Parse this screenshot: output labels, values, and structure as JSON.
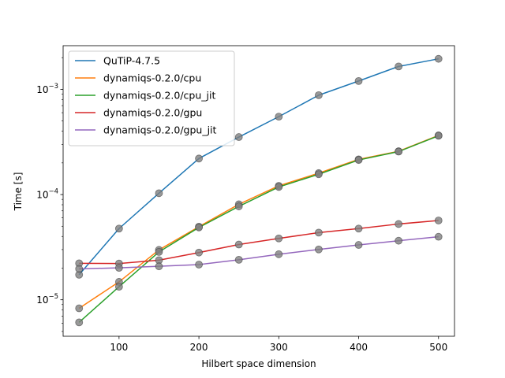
{
  "chart_data": {
    "type": "line",
    "title": "",
    "xlabel": "Hilbert space dimension",
    "ylabel": "Time [s]",
    "yscale": "log",
    "xlim": [
      30,
      520
    ],
    "ylim": [
      4.5e-06,
      0.0026
    ],
    "grid": false,
    "legend_position": "top-left",
    "x": [
      50,
      100,
      150,
      200,
      250,
      300,
      350,
      400,
      450,
      500
    ],
    "x_ticks": [
      100,
      200,
      300,
      400,
      500
    ],
    "y_ticks": [
      {
        "value": 1e-05,
        "base": "10",
        "exp": "−5"
      },
      {
        "value": 0.0001,
        "base": "10",
        "exp": "−4"
      },
      {
        "value": 0.001,
        "base": "10",
        "exp": "−3"
      }
    ],
    "marker_color": "#808080",
    "series": [
      {
        "name": "QuTiP-4.7.5",
        "color": "#1f77b4",
        "values": [
          1.73e-05,
          4.75e-05,
          0.000103,
          0.00022,
          0.000352,
          0.00055,
          0.00088,
          0.0012,
          0.00165,
          0.00195
        ]
      },
      {
        "name": "dynamiqs-0.2.0/cpu",
        "color": "#ff7f0e",
        "values": [
          8.3e-06,
          1.48e-05,
          2.98e-05,
          4.95e-05,
          8.08e-05,
          0.000121,
          0.00016,
          0.000216,
          0.000258,
          0.000365
        ]
      },
      {
        "name": "dynamiqs-0.2.0/cpu_jit",
        "color": "#2ca02c",
        "values": [
          6.1e-06,
          1.33e-05,
          2.85e-05,
          4.87e-05,
          7.72e-05,
          0.000118,
          0.000156,
          0.000213,
          0.000256,
          0.000362
        ]
      },
      {
        "name": "dynamiqs-0.2.0/gpu",
        "color": "#d62728",
        "values": [
          2.22e-05,
          2.21e-05,
          2.38e-05,
          2.81e-05,
          3.35e-05,
          3.83e-05,
          4.35e-05,
          4.75e-05,
          5.25e-05,
          5.67e-05
        ]
      },
      {
        "name": "dynamiqs-0.2.0/gpu_jit",
        "color": "#9467bd",
        "values": [
          1.97e-05,
          2.01e-05,
          2.08e-05,
          2.16e-05,
          2.4e-05,
          2.71e-05,
          3.01e-05,
          3.32e-05,
          3.64e-05,
          3.97e-05
        ]
      }
    ]
  }
}
